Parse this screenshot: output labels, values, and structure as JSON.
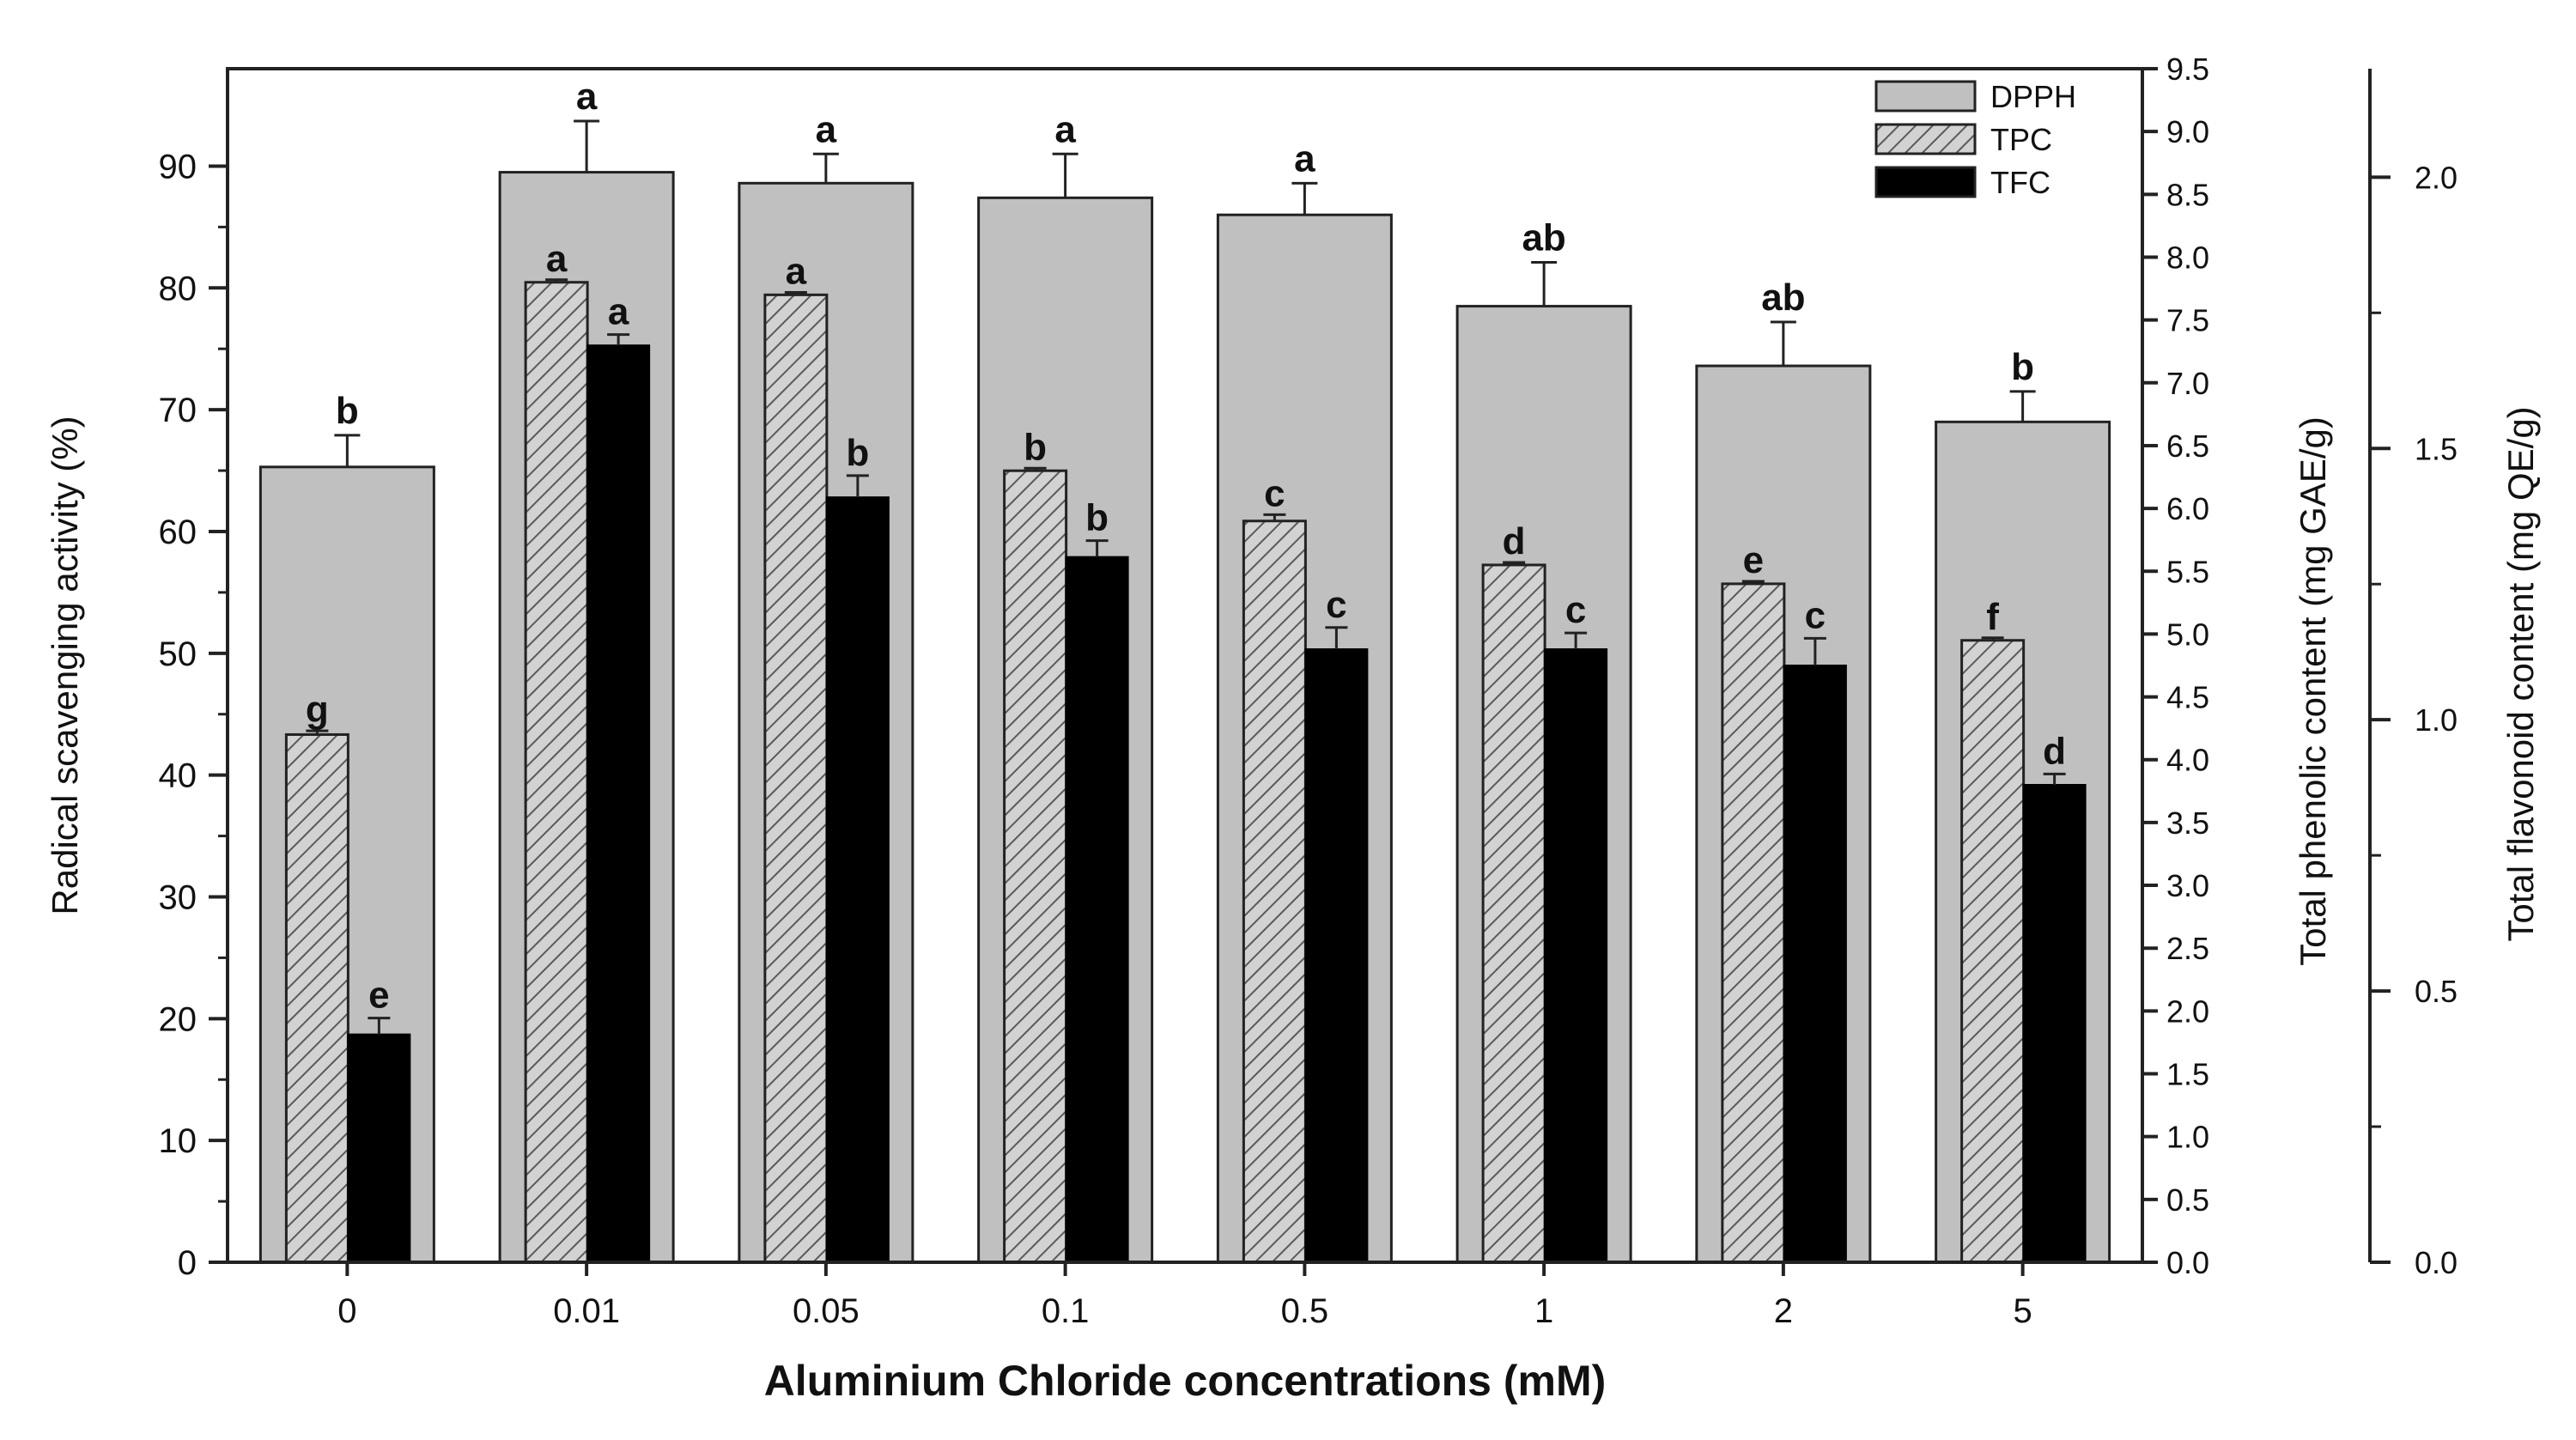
{
  "chart_data": {
    "type": "bar",
    "xlabel": "Aluminium Chloride concentrations (mM)",
    "categories": [
      "0",
      "0.01",
      "0.05",
      "0.1",
      "0.5",
      "1",
      "2",
      "5"
    ],
    "axes": {
      "left": {
        "label": "Radical scavenging activity (%)",
        "ylim": [
          0,
          98
        ],
        "ticks": [
          0,
          10,
          20,
          30,
          40,
          50,
          60,
          70,
          80,
          90
        ]
      },
      "right1": {
        "label": "Total phenolic content (mg GAE/g)",
        "ylim": [
          0,
          9.5
        ],
        "ticks": [
          "0.0",
          "0.5",
          "1.0",
          "1.5",
          "2.0",
          "2.5",
          "3.0",
          "3.5",
          "4.0",
          "4.5",
          "5.0",
          "5.5",
          "6.0",
          "6.5",
          "7.0",
          "7.5",
          "8.0",
          "8.5",
          "9.0",
          "9.5"
        ]
      },
      "right2": {
        "label": "Total flavonoid content (mg QE/g)",
        "ylim": [
          0,
          2.2
        ],
        "ticks": [
          "0.0",
          "0.5",
          "1.0",
          "1.5",
          "2.0"
        ]
      }
    },
    "series": [
      {
        "name": "DPPH",
        "axis": "left",
        "color": "#c0c0c0",
        "values": [
          65.3,
          89.5,
          88.6,
          87.4,
          86.0,
          78.5,
          73.6,
          69.0
        ],
        "errors": [
          2.6,
          4.2,
          2.4,
          3.6,
          2.6,
          3.6,
          3.6,
          2.5
        ],
        "letters": [
          "b",
          "a",
          "a",
          "a",
          "a",
          "ab",
          "ab",
          "b"
        ]
      },
      {
        "name": "TPC",
        "axis": "right1",
        "color": "#bdbdbd",
        "values": [
          4.2,
          7.8,
          7.7,
          6.3,
          5.9,
          5.55,
          5.4,
          4.95
        ],
        "errors": [
          0.03,
          0.02,
          0.02,
          0.02,
          0.05,
          0.02,
          0.02,
          0.02
        ],
        "letters": [
          "g",
          "a",
          "a",
          "b",
          "c",
          "d",
          "e",
          "f"
        ]
      },
      {
        "name": "TFC",
        "axis": "right2",
        "color": "#000000",
        "values": [
          0.42,
          1.69,
          1.41,
          1.3,
          1.13,
          1.13,
          1.1,
          0.88
        ],
        "errors": [
          0.03,
          0.02,
          0.04,
          0.03,
          0.04,
          0.03,
          0.05,
          0.02
        ],
        "letters": [
          "e",
          "a",
          "b",
          "b",
          "c",
          "c",
          "c",
          "d"
        ]
      }
    ],
    "legend_position": "top-right",
    "grid": false
  }
}
